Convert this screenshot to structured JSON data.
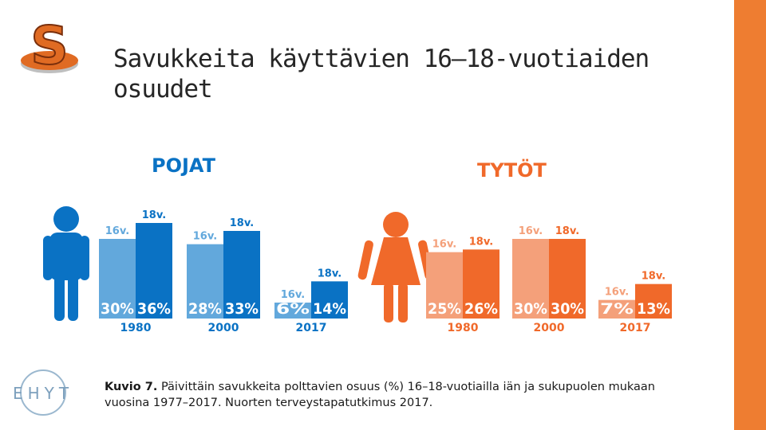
{
  "page": {
    "title": "Savukkeita käyttävien 16–18-vuotiaiden osuudet",
    "caption_bold": "Kuvio 7.",
    "caption_text": " Päivittäin savukkeita polttavien osuus (%) 16–18-vuotiailla iän ja sukupuolen mukaan vuosina 1977–2017. Nuorten terveystapatutkimus 2017.",
    "logo_letter": "S",
    "ehyt_text": "EHYT",
    "accent_color": "#ee7d31"
  },
  "chart_data": [
    {
      "type": "bar",
      "title": "POJAT",
      "categories": [
        "1980",
        "2000",
        "2017"
      ],
      "series": [
        {
          "name": "16v.",
          "values": [
            30,
            28,
            6
          ],
          "labels": [
            "30%",
            "28%",
            "6%"
          ],
          "color": "#62a8dc"
        },
        {
          "name": "18v.",
          "values": [
            36,
            33,
            14
          ],
          "labels": [
            "36%",
            "33%",
            "14%"
          ],
          "color": "#0a72c4"
        }
      ],
      "ylim": [
        0,
        40
      ],
      "icon": "boy-icon"
    },
    {
      "type": "bar",
      "title": "TYTÖT",
      "categories": [
        "1980",
        "2000",
        "2017"
      ],
      "series": [
        {
          "name": "16v.",
          "values": [
            25,
            30,
            7
          ],
          "labels": [
            "25%",
            "30%",
            "7%"
          ],
          "color": "#f4a07a"
        },
        {
          "name": "18v.",
          "values": [
            26,
            30,
            13
          ],
          "labels": [
            "26%",
            "30%",
            "13%"
          ],
          "color": "#f0692a"
        }
      ],
      "ylim": [
        0,
        40
      ],
      "icon": "girl-icon"
    }
  ]
}
